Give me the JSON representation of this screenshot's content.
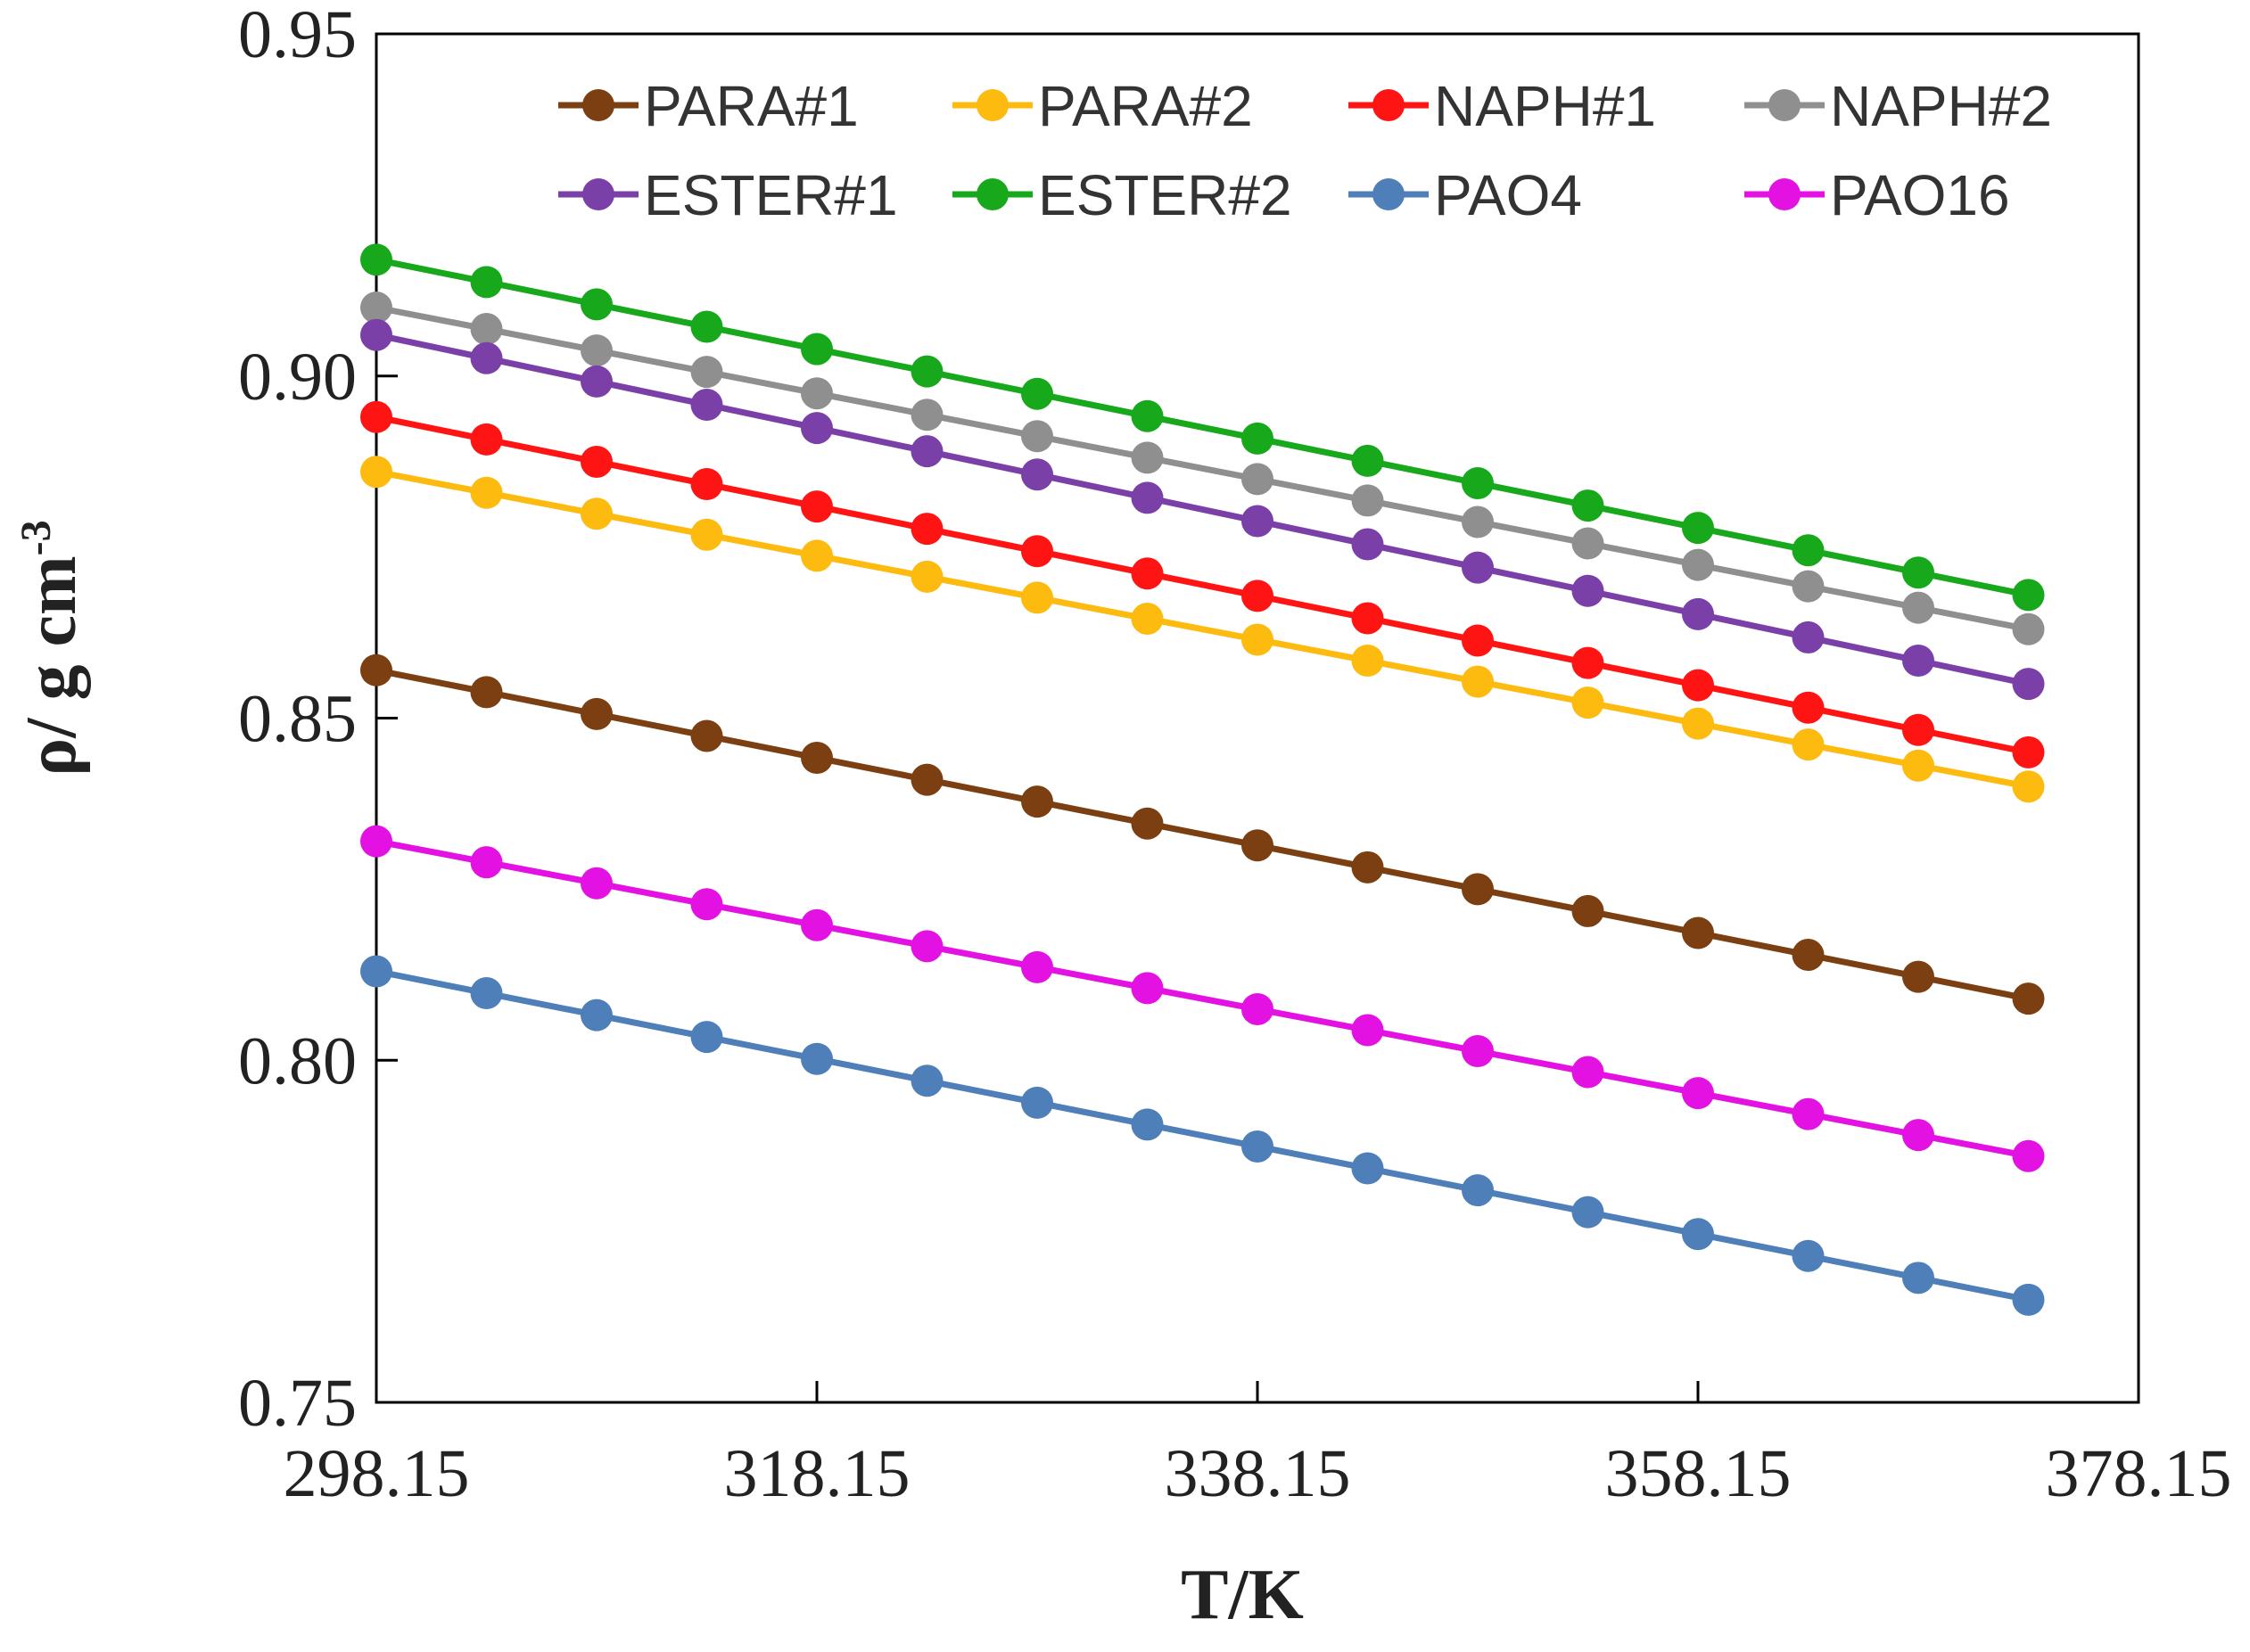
{
  "chart_data": {
    "type": "line",
    "title": "",
    "xlabel": "T/K",
    "ylabel": "ρ/ g cm",
    "ylabel_superscript": "-3",
    "xlim": [
      298.15,
      378.15
    ],
    "ylim": [
      0.75,
      0.95
    ],
    "xticks": [
      "298.15",
      "318.15",
      "338.15",
      "358.15",
      "378.15"
    ],
    "yticks": [
      "0.75",
      "0.80",
      "0.85",
      "0.90",
      "0.95"
    ],
    "grid": false,
    "legend_position": "top, inside plot, 4 columns",
    "x": [
      298.15,
      303.15,
      308.15,
      313.15,
      318.15,
      323.15,
      328.15,
      333.15,
      338.15,
      343.15,
      348.15,
      353.15,
      358.15,
      363.15,
      368.15,
      373.15
    ],
    "series": [
      {
        "name": "PARA#1",
        "color": "#7B3F12",
        "start": 0.857,
        "end": 0.809
      },
      {
        "name": "PARA#2",
        "color": "#FDBA0F",
        "start": 0.886,
        "end": 0.84
      },
      {
        "name": "NAPH#1",
        "color": "#FF1414",
        "start": 0.894,
        "end": 0.845
      },
      {
        "name": "NAPH#2",
        "color": "#8F8F8F",
        "start": 0.91,
        "end": 0.863
      },
      {
        "name": "ESTER#1",
        "color": "#7B3FA8",
        "start": 0.906,
        "end": 0.855
      },
      {
        "name": "ESTER#2",
        "color": "#17A91B",
        "start": 0.917,
        "end": 0.868
      },
      {
        "name": "PAO4",
        "color": "#4F7FB8",
        "start": 0.813,
        "end": 0.765
      },
      {
        "name": "PAO16",
        "color": "#E312E3",
        "start": 0.832,
        "end": 0.786
      }
    ]
  }
}
